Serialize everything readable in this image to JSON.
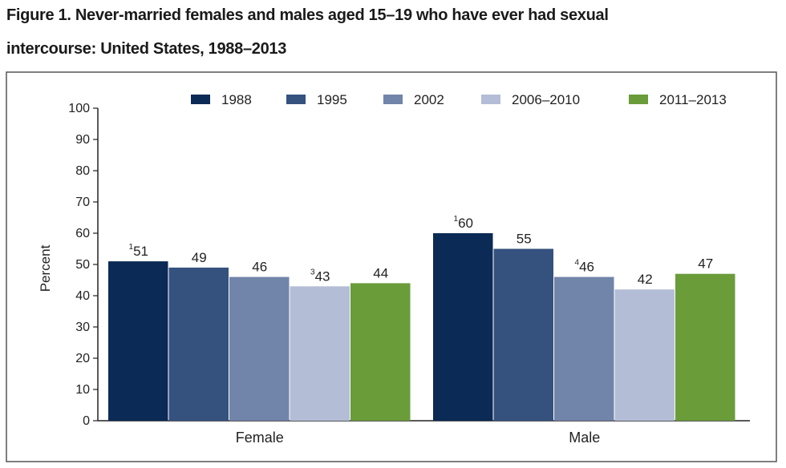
{
  "title_line1": "Figure 1. Never-married females and males aged 15–19 who have ever had sexual",
  "title_line2": "intercourse: United States, 1988–2013",
  "chart_data": {
    "type": "bar",
    "categories": [
      "Female",
      "Male"
    ],
    "ylabel": "Percent",
    "ylim": [
      0,
      100
    ],
    "yticks": [
      0,
      10,
      20,
      30,
      40,
      50,
      60,
      70,
      80,
      90,
      100
    ],
    "legend_position": "top",
    "grid": false,
    "series": [
      {
        "name": "1988",
        "color": "#0b2a55",
        "values": [
          51,
          60
        ],
        "markers": [
          "1",
          "1"
        ]
      },
      {
        "name": "1995",
        "color": "#35527f",
        "values": [
          49,
          55
        ],
        "markers": [
          "",
          ""
        ]
      },
      {
        "name": "2002",
        "color": "#7184aa",
        "values": [
          46,
          46
        ],
        "markers": [
          "",
          "4"
        ]
      },
      {
        "name": "2006–2010",
        "color": "#b3bdd6",
        "values": [
          43,
          42
        ],
        "markers": [
          "3",
          ""
        ]
      },
      {
        "name": "2011–2013",
        "color": "#6a9c3a",
        "values": [
          44,
          47
        ],
        "markers": [
          "",
          ""
        ]
      }
    ]
  }
}
